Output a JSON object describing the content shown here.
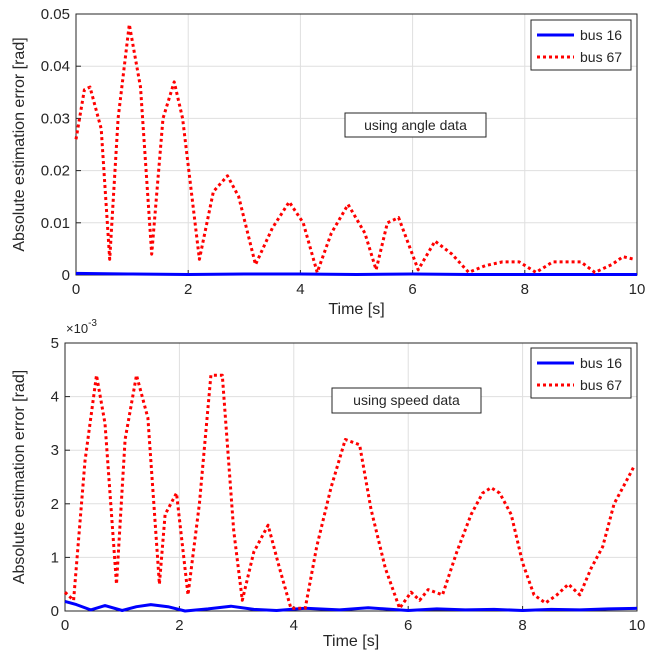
{
  "chart_data": [
    {
      "type": "line",
      "title": "",
      "xlabel": "Time [s]",
      "ylabel": "Absolute estimation error [rad]",
      "xlim": [
        0,
        10
      ],
      "ylim": [
        0,
        0.05
      ],
      "xticks": [
        0,
        2,
        4,
        6,
        8,
        10
      ],
      "yticks": [
        0,
        0.01,
        0.02,
        0.03,
        0.04,
        0.05
      ],
      "ytick_labels": [
        "0",
        "0.01",
        "0.02",
        "0.03",
        "0.04",
        "0.05"
      ],
      "y_exponent_label": "",
      "grid": true,
      "legend_position": "top-right",
      "annotation": "using angle data",
      "series": [
        {
          "name": "bus 16",
          "color": "#0000ff",
          "style": "solid",
          "x": [
            0,
            1,
            2,
            3,
            4,
            5,
            6,
            7,
            8,
            9,
            10
          ],
          "y": [
            0.0003,
            0.0002,
            0.0001,
            0.0002,
            0.0002,
            0.0001,
            0.0002,
            0.0001,
            0.0001,
            0.0001,
            0.0001
          ]
        },
        {
          "name": "bus 67",
          "color": "#ff0000",
          "style": "dotted",
          "x": [
            0,
            0.15,
            0.25,
            0.45,
            0.6,
            0.75,
            0.95,
            1.15,
            1.35,
            1.55,
            1.75,
            1.9,
            2.2,
            2.45,
            2.7,
            2.9,
            3.2,
            3.5,
            3.8,
            4.05,
            4.3,
            4.55,
            4.85,
            5.15,
            5.35,
            5.55,
            5.75,
            6.1,
            6.4,
            6.7,
            7.0,
            7.3,
            7.6,
            7.9,
            8.2,
            8.5,
            8.8,
            9.0,
            9.25,
            9.55,
            9.75,
            9.95
          ],
          "y": [
            0.026,
            0.0355,
            0.036,
            0.028,
            0.003,
            0.03,
            0.048,
            0.036,
            0.004,
            0.03,
            0.037,
            0.03,
            0.003,
            0.016,
            0.019,
            0.015,
            0.002,
            0.009,
            0.014,
            0.01,
            0.0005,
            0.008,
            0.0135,
            0.008,
            0.001,
            0.01,
            0.011,
            0.001,
            0.0065,
            0.004,
            0.0005,
            0.0018,
            0.0025,
            0.0025,
            0.0005,
            0.0025,
            0.0025,
            0.0025,
            0.0005,
            0.002,
            0.0035,
            0.003
          ]
        }
      ]
    },
    {
      "type": "line",
      "title": "",
      "xlabel": "Time [s]",
      "ylabel": "Absolute estimation error [rad]",
      "xlim": [
        0,
        10
      ],
      "ylim": [
        0,
        5
      ],
      "xticks": [
        0,
        2,
        4,
        6,
        8,
        10
      ],
      "yticks": [
        0,
        1,
        2,
        3,
        4,
        5
      ],
      "ytick_labels": [
        "0",
        "1",
        "2",
        "3",
        "4",
        "5"
      ],
      "y_exponent_label": "×10",
      "y_exponent_power": "-3",
      "grid": true,
      "legend_position": "top-right",
      "annotation": "using speed data",
      "series": [
        {
          "name": "bus 16",
          "color": "#0000ff",
          "style": "solid",
          "x": [
            0,
            0.2,
            0.45,
            0.7,
            1.0,
            1.25,
            1.5,
            1.8,
            2.1,
            2.5,
            2.9,
            3.3,
            3.7,
            4.2,
            4.8,
            5.3,
            6.0,
            6.5,
            7.0,
            7.5,
            8.0,
            8.5,
            9.0,
            9.5,
            10.0
          ],
          "y": [
            0.18,
            0.12,
            0.02,
            0.1,
            0.01,
            0.08,
            0.12,
            0.08,
            0.0,
            0.04,
            0.09,
            0.03,
            0.01,
            0.05,
            0.02,
            0.06,
            0.01,
            0.04,
            0.02,
            0.03,
            0.01,
            0.03,
            0.02,
            0.04,
            0.05
          ]
        },
        {
          "name": "bus 67",
          "color": "#ff0000",
          "style": "dotted",
          "x": [
            0,
            0.15,
            0.35,
            0.55,
            0.7,
            0.9,
            1.05,
            1.25,
            1.45,
            1.65,
            1.75,
            1.95,
            2.15,
            2.35,
            2.55,
            2.75,
            2.95,
            3.1,
            3.3,
            3.55,
            3.75,
            3.95,
            4.2,
            4.4,
            4.65,
            4.9,
            5.15,
            5.35,
            5.6,
            5.85,
            6.05,
            6.2,
            6.35,
            6.6,
            6.85,
            7.1,
            7.3,
            7.45,
            7.6,
            7.8,
            8.0,
            8.2,
            8.4,
            8.6,
            8.8,
            9.0,
            9.2,
            9.4,
            9.6,
            9.8,
            9.95
          ],
          "y": [
            0.35,
            0.2,
            2.8,
            4.4,
            3.5,
            0.5,
            3.2,
            4.4,
            3.6,
            0.5,
            1.8,
            2.2,
            0.3,
            2.0,
            4.4,
            4.4,
            1.5,
            0.2,
            1.1,
            1.6,
            0.8,
            0.05,
            0.05,
            1.2,
            2.3,
            3.2,
            3.1,
            1.9,
            0.8,
            0.05,
            0.35,
            0.2,
            0.4,
            0.3,
            1.1,
            1.8,
            2.2,
            2.3,
            2.2,
            1.8,
            0.9,
            0.3,
            0.15,
            0.3,
            0.5,
            0.3,
            0.8,
            1.2,
            2.0,
            2.4,
            2.7
          ]
        }
      ]
    }
  ]
}
